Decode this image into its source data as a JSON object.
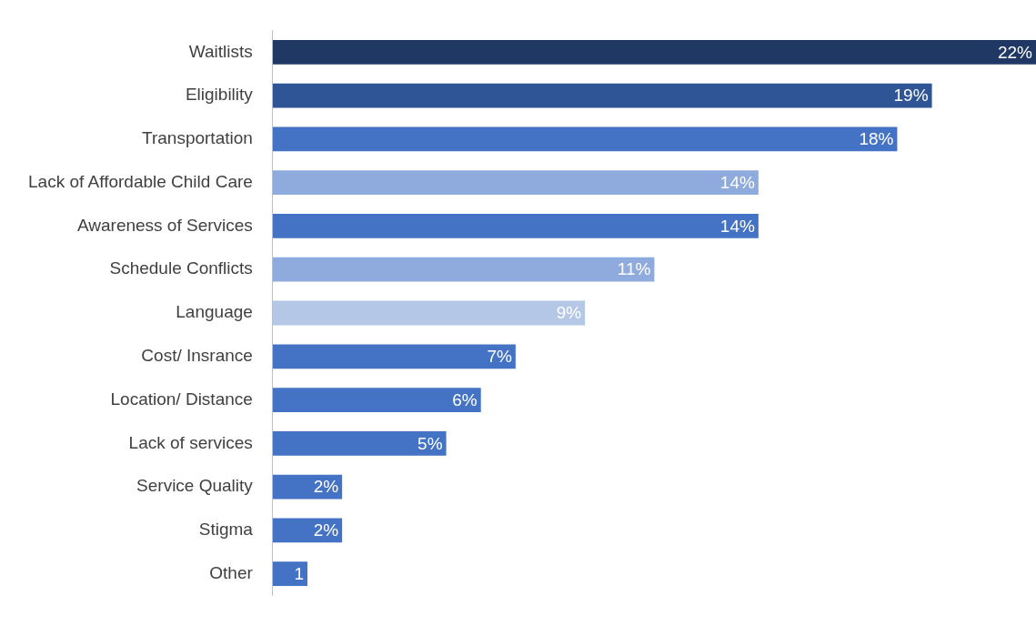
{
  "chart_data": {
    "type": "bar",
    "orientation": "horizontal",
    "categories": [
      "Waitlists",
      "Eligibility",
      "Transportation",
      "Lack of Affordable Child Care",
      "Awareness of Services",
      "Schedule Conflicts",
      "Language",
      "Cost/ Insrance",
      "Location/ Distance",
      "Lack of services",
      "Service Quality",
      "Stigma",
      "Other"
    ],
    "values": [
      22,
      19,
      18,
      14,
      14,
      11,
      9,
      7,
      6,
      5,
      2,
      2,
      1
    ],
    "colors": [
      "#203864",
      "#2f5597",
      "#4472c4",
      "#8faadc",
      "#4472c4",
      "#8faadc",
      "#b4c7e7",
      "#4472c4",
      "#4472c4",
      "#4472c4",
      "#4472c4",
      "#4472c4",
      "#4472c4"
    ],
    "value_labels": [
      "22%",
      "19%",
      "18%",
      "14%",
      "14%",
      "11%",
      "9%",
      "7%",
      "6%",
      "5%",
      "2%",
      "2%",
      "1"
    ],
    "xlim": [
      0,
      22
    ],
    "grid": false,
    "legend": false,
    "tick_labels": "y"
  }
}
